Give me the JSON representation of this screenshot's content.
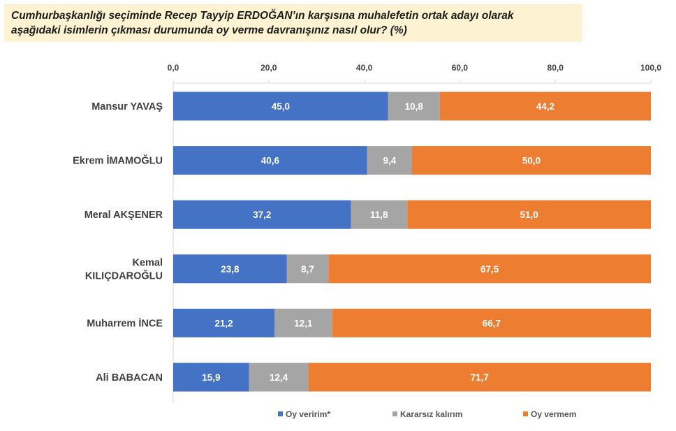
{
  "title": {
    "line1": "Cumhurbaşkanlığı seçiminde Recep Tayyip ERDOĞAN’ın karşısına muhalefetin ortak adayı olarak",
    "line2": "aşağıdaki isimlerin çıkması durumunda oy verme davranışınız nasıl olur? (%)"
  },
  "colors": {
    "oy_veririm": "#4472c4",
    "kararsiz": "#a5a5a5",
    "oy_vermem": "#ed7d31",
    "axis": "#d9d9d9",
    "label": "#404040"
  },
  "chart_data": {
    "type": "bar",
    "orientation": "horizontal",
    "stacked": true,
    "xlim": [
      0,
      100
    ],
    "x_ticks": [
      "0,0",
      "20,0",
      "40,0",
      "60,0",
      "80,0",
      "100,0"
    ],
    "x_axis_position": "top",
    "grid": false,
    "legend_position": "bottom",
    "categories": [
      "Mansur YAVAŞ",
      "Ekrem İMAMOĞLU",
      "Meral AKŞENER",
      "Kemal KILIÇDAROĞLU",
      "Muharrem İNCE",
      "Ali BABACAN"
    ],
    "category_lines": [
      [
        "Mansur YAVAŞ"
      ],
      [
        "Ekrem İMAMOĞLU"
      ],
      [
        "Meral AKŞENER"
      ],
      [
        "Kemal",
        "KILIÇDAROĞLU"
      ],
      [
        "Muharrem İNCE"
      ],
      [
        "Ali BABACAN"
      ]
    ],
    "series": [
      {
        "name": "Oy veririm*",
        "values": [
          45.0,
          40.6,
          37.2,
          23.8,
          21.2,
          15.9
        ],
        "labels": [
          "45,0",
          "40,6",
          "37,2",
          "23,8",
          "21,2",
          "15,9"
        ]
      },
      {
        "name": "Kararsız kalırım",
        "values": [
          10.8,
          9.4,
          11.8,
          8.7,
          12.1,
          12.4
        ],
        "labels": [
          "10,8",
          "9,4",
          "11,8",
          "8,7",
          "12,1",
          "12,4"
        ]
      },
      {
        "name": "Oy vermem",
        "values": [
          44.2,
          50.0,
          51.0,
          67.5,
          66.7,
          71.7
        ],
        "labels": [
          "44,2",
          "50,0",
          "51,0",
          "67,5",
          "66,7",
          "71,7"
        ]
      }
    ]
  }
}
